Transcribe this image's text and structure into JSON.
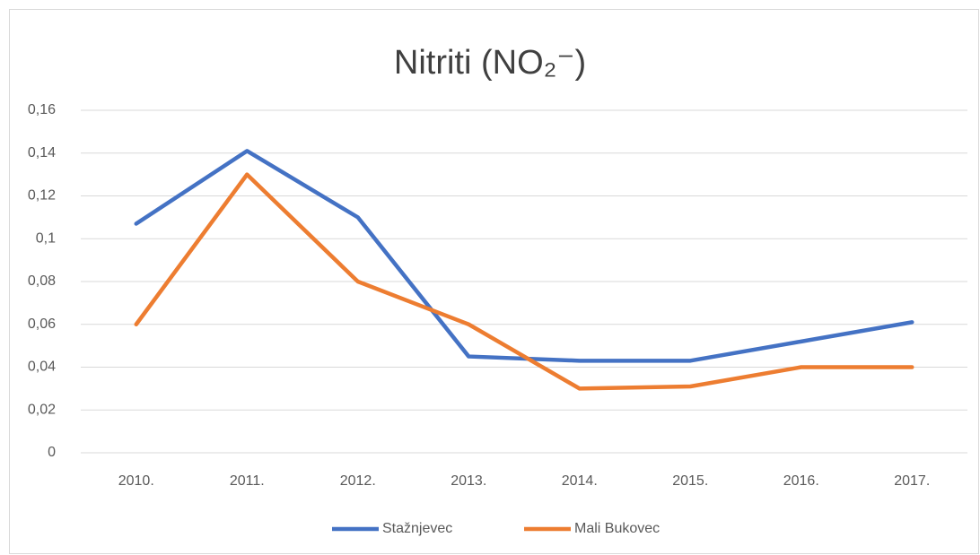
{
  "chart_data": {
    "type": "line",
    "title": "Nitriti (NO₂⁻)",
    "categories": [
      "2010.",
      "2011.",
      "2012.",
      "2013.",
      "2014.",
      "2015.",
      "2016.",
      "2017."
    ],
    "series": [
      {
        "name": "Stažnjevec",
        "color": "#4472c4",
        "values": [
          0.107,
          0.141,
          0.11,
          0.045,
          0.043,
          0.043,
          0.052,
          0.061
        ]
      },
      {
        "name": "Mali Bukovec",
        "color": "#ed7d31",
        "values": [
          0.06,
          0.13,
          0.08,
          0.06,
          0.03,
          0.031,
          0.04,
          0.04
        ]
      }
    ],
    "ylim": [
      0,
      0.16
    ],
    "yticks": [
      0,
      {
        "value": 0.02,
        "label": "0,02"
      },
      {
        "value": 0.04,
        "label": "0,04"
      },
      {
        "value": 0.06,
        "label": "0,06"
      },
      {
        "value": 0.08,
        "label": "0,08"
      },
      {
        "value": 0.1,
        "label": "0,1"
      },
      {
        "value": 0.12,
        "label": "0,12"
      },
      {
        "value": 0.14,
        "label": "0,14"
      },
      {
        "value": 0.16,
        "label": "0,16"
      }
    ],
    "grid": true,
    "legend": "bottom"
  }
}
